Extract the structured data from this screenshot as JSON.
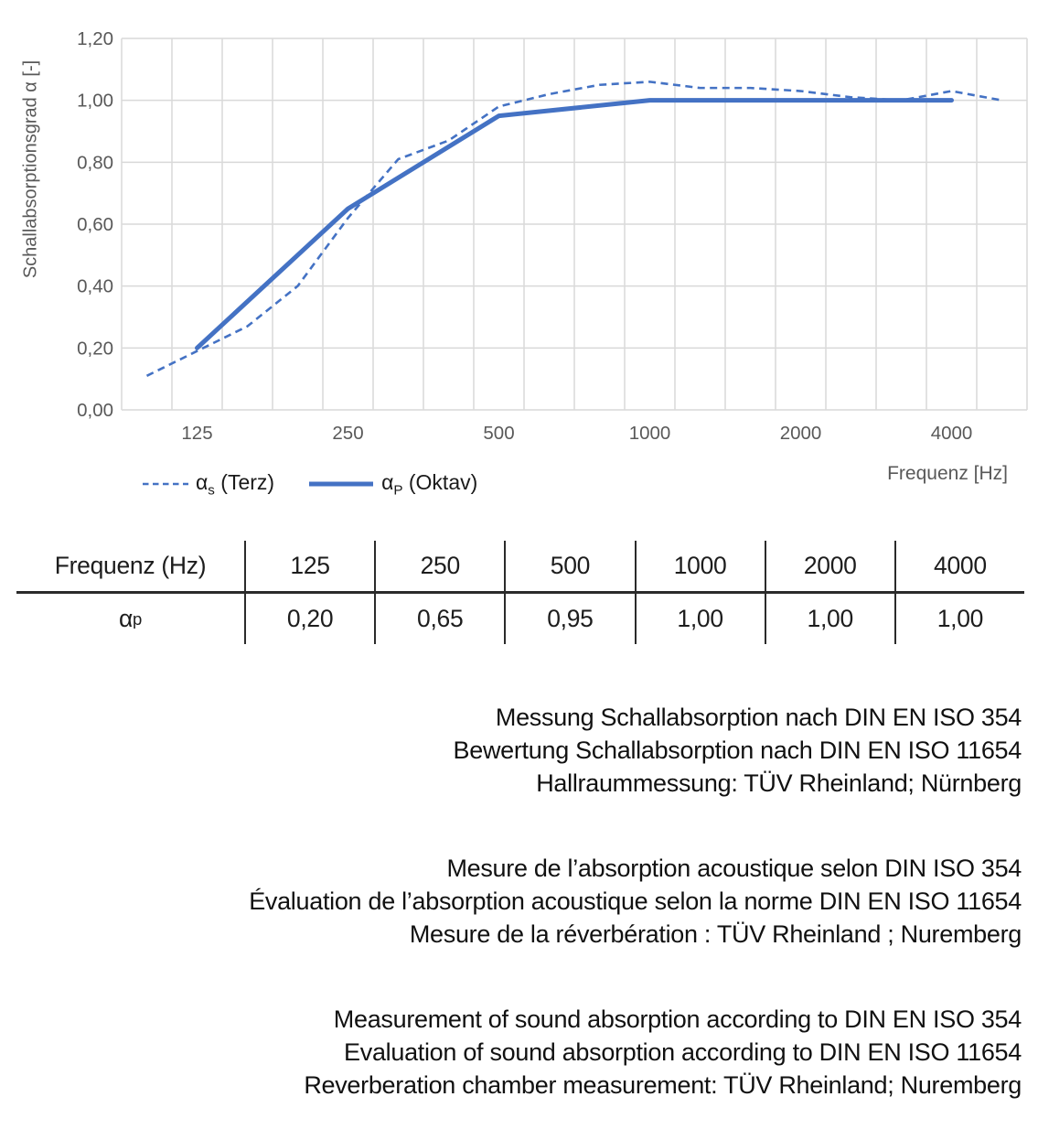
{
  "chart": {
    "y_axis_title": "Schallabsorptionsgrad α [-]",
    "x_axis_title": "Frequenz [Hz]"
  },
  "legend": {
    "terz": {
      "symbol": "α",
      "sub": "s",
      "rest": " (Terz)"
    },
    "oktav": {
      "symbol": "α",
      "sub": "P",
      "rest": " (Oktav)"
    }
  },
  "chart_data": {
    "type": "line",
    "categories": [
      "100",
      "125",
      "160",
      "200",
      "250",
      "315",
      "400",
      "500",
      "630",
      "800",
      "1000",
      "1250",
      "1600",
      "2000",
      "2500",
      "3150",
      "4000",
      "5000"
    ],
    "x_tick_labels": [
      "125",
      "250",
      "500",
      "1000",
      "2000",
      "4000"
    ],
    "y_ticks": [
      {
        "label": "0,00",
        "value": 0.0
      },
      {
        "label": "0,20",
        "value": 0.2
      },
      {
        "label": "0,40",
        "value": 0.4
      },
      {
        "label": "0,60",
        "value": 0.6
      },
      {
        "label": "0,80",
        "value": 0.8
      },
      {
        "label": "1,00",
        "value": 1.0
      },
      {
        "label": "1,20",
        "value": 1.2
      }
    ],
    "ylim": [
      0,
      1.2
    ],
    "grid": true,
    "legend_position": "below-left",
    "series": [
      {
        "name": "αs (Terz)",
        "style": "dashed",
        "values": [
          0.11,
          0.19,
          0.27,
          0.4,
          0.62,
          0.81,
          0.87,
          0.98,
          1.02,
          1.05,
          1.06,
          1.04,
          1.04,
          1.03,
          1.01,
          1.0,
          1.03,
          1.0
        ]
      },
      {
        "name": "αP (Oktav)",
        "style": "solid",
        "points": [
          {
            "category": "125",
            "value": 0.2
          },
          {
            "category": "250",
            "value": 0.65
          },
          {
            "category": "500",
            "value": 0.95
          },
          {
            "category": "1000",
            "value": 1.0
          },
          {
            "category": "2000",
            "value": 1.0
          },
          {
            "category": "4000",
            "value": 1.0
          }
        ]
      }
    ],
    "colors": {
      "line_blue": "#4472C4",
      "gridline": "#D9D9D9",
      "axis_text": "#595959"
    }
  },
  "table": {
    "header_label": "Frequenz (Hz)",
    "frequencies": [
      "125",
      "250",
      "500",
      "1000",
      "2000",
      "4000"
    ],
    "row_symbol": "α",
    "row_sub": "p",
    "values": [
      "0,20",
      "0,65",
      "0,95",
      "1,00",
      "1,00",
      "1,00"
    ]
  },
  "notes": {
    "de": [
      "Messung Schallabsorption nach DIN EN ISO 354",
      "Bewertung Schallabsorption nach DIN EN ISO 11654",
      "Hallraummessung: TÜV Rheinland; Nürnberg"
    ],
    "fr": [
      "Mesure de l’absorption acoustique selon DIN ISO 354",
      "Évaluation de l’absorption acoustique selon la norme DIN EN ISO 11654",
      "Mesure de la réverbération : TÜV Rheinland ; Nuremberg"
    ],
    "en": [
      "Measurement of sound absorption according to DIN EN ISO 354",
      "Evaluation of sound absorption according to DIN EN ISO 11654",
      "Reverberation chamber measurement: TÜV Rheinland; Nuremberg"
    ]
  }
}
